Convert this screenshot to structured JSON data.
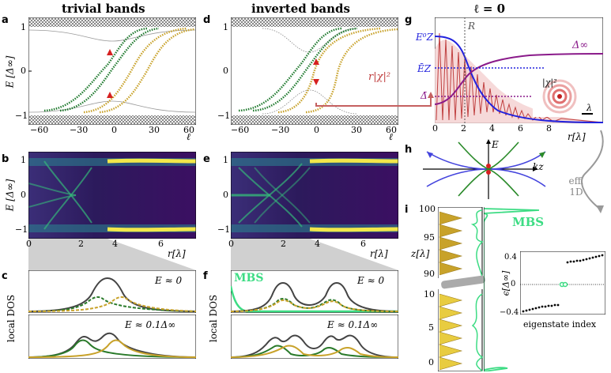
{
  "titles": {
    "left": "trivial bands",
    "middle": "inverted bands",
    "right": "ℓ = 0"
  },
  "panel_letters": [
    "a",
    "b",
    "c",
    "d",
    "e",
    "f",
    "g",
    "h",
    "i"
  ],
  "panel_a": {
    "ylabel": "E [Δ∞]",
    "xlabel": "ℓ",
    "xticks": [
      "−60",
      "−30",
      "0",
      "30",
      "60"
    ],
    "yticks": [
      "1",
      "0",
      "−1"
    ]
  },
  "panel_d": {
    "xlabel": "ℓ",
    "xticks": [
      "−60",
      "−30",
      "0",
      "30",
      "60"
    ],
    "yticks": [
      "1",
      "0",
      "−1"
    ]
  },
  "panel_b": {
    "ylabel": "E [Δ∞]",
    "xlabel": "r[λ]",
    "xticks": [
      "0",
      "2",
      "4",
      "6"
    ],
    "yticks": [
      "1",
      "0",
      "−1"
    ]
  },
  "panel_e": {
    "xlabel": "r[λ]",
    "xticks": [
      "0",
      "2",
      "4",
      "6"
    ],
    "yticks": [
      "1",
      "0",
      "−1"
    ]
  },
  "panel_c": {
    "ylabel": "local DOS",
    "top_label": "E ≈ 0",
    "bottom_label": "E ≈ 0.1Δ∞"
  },
  "panel_f": {
    "ylabel": "local DOS",
    "mbs_label": "MBS",
    "top_label": "E ≈ 0",
    "bottom_label": "E ≈ 0.1Δ∞"
  },
  "panel_g": {
    "arrow_label": "r|χ|²",
    "R_label": "R",
    "ez0": "E⁰Z",
    "ezbar": "ĒZ",
    "deltabar": "Δ̄",
    "delta_inf": "Δ∞",
    "chi_label": "|χ|²",
    "lambda_label": "λ",
    "xlabel": "r[λ]",
    "xticks": [
      "0",
      "2",
      "4",
      "6",
      "8"
    ]
  },
  "panel_h": {
    "e_label": "E",
    "kz_label": "kz",
    "side_label": "eff. 1D"
  },
  "panel_i": {
    "ylabel": "z[λ]",
    "zticks_top": [
      "100",
      "95",
      "90"
    ],
    "zticks_bottom": [
      "10",
      "5",
      "0"
    ],
    "mbs_label": "MBS",
    "inset_ylabel": "ϵ[Δ∞]",
    "inset_xlabel": "eigenstate index",
    "inset_yticks": [
      "0.4",
      "0",
      "−0.4"
    ]
  },
  "colors": {
    "green": "#1f7a2e",
    "gold": "#c8a22a",
    "red": "#d62020",
    "blue": "#2222dd",
    "purple": "#8a1a8a",
    "mbs": "#3ddc84",
    "gray": "#888888"
  }
}
